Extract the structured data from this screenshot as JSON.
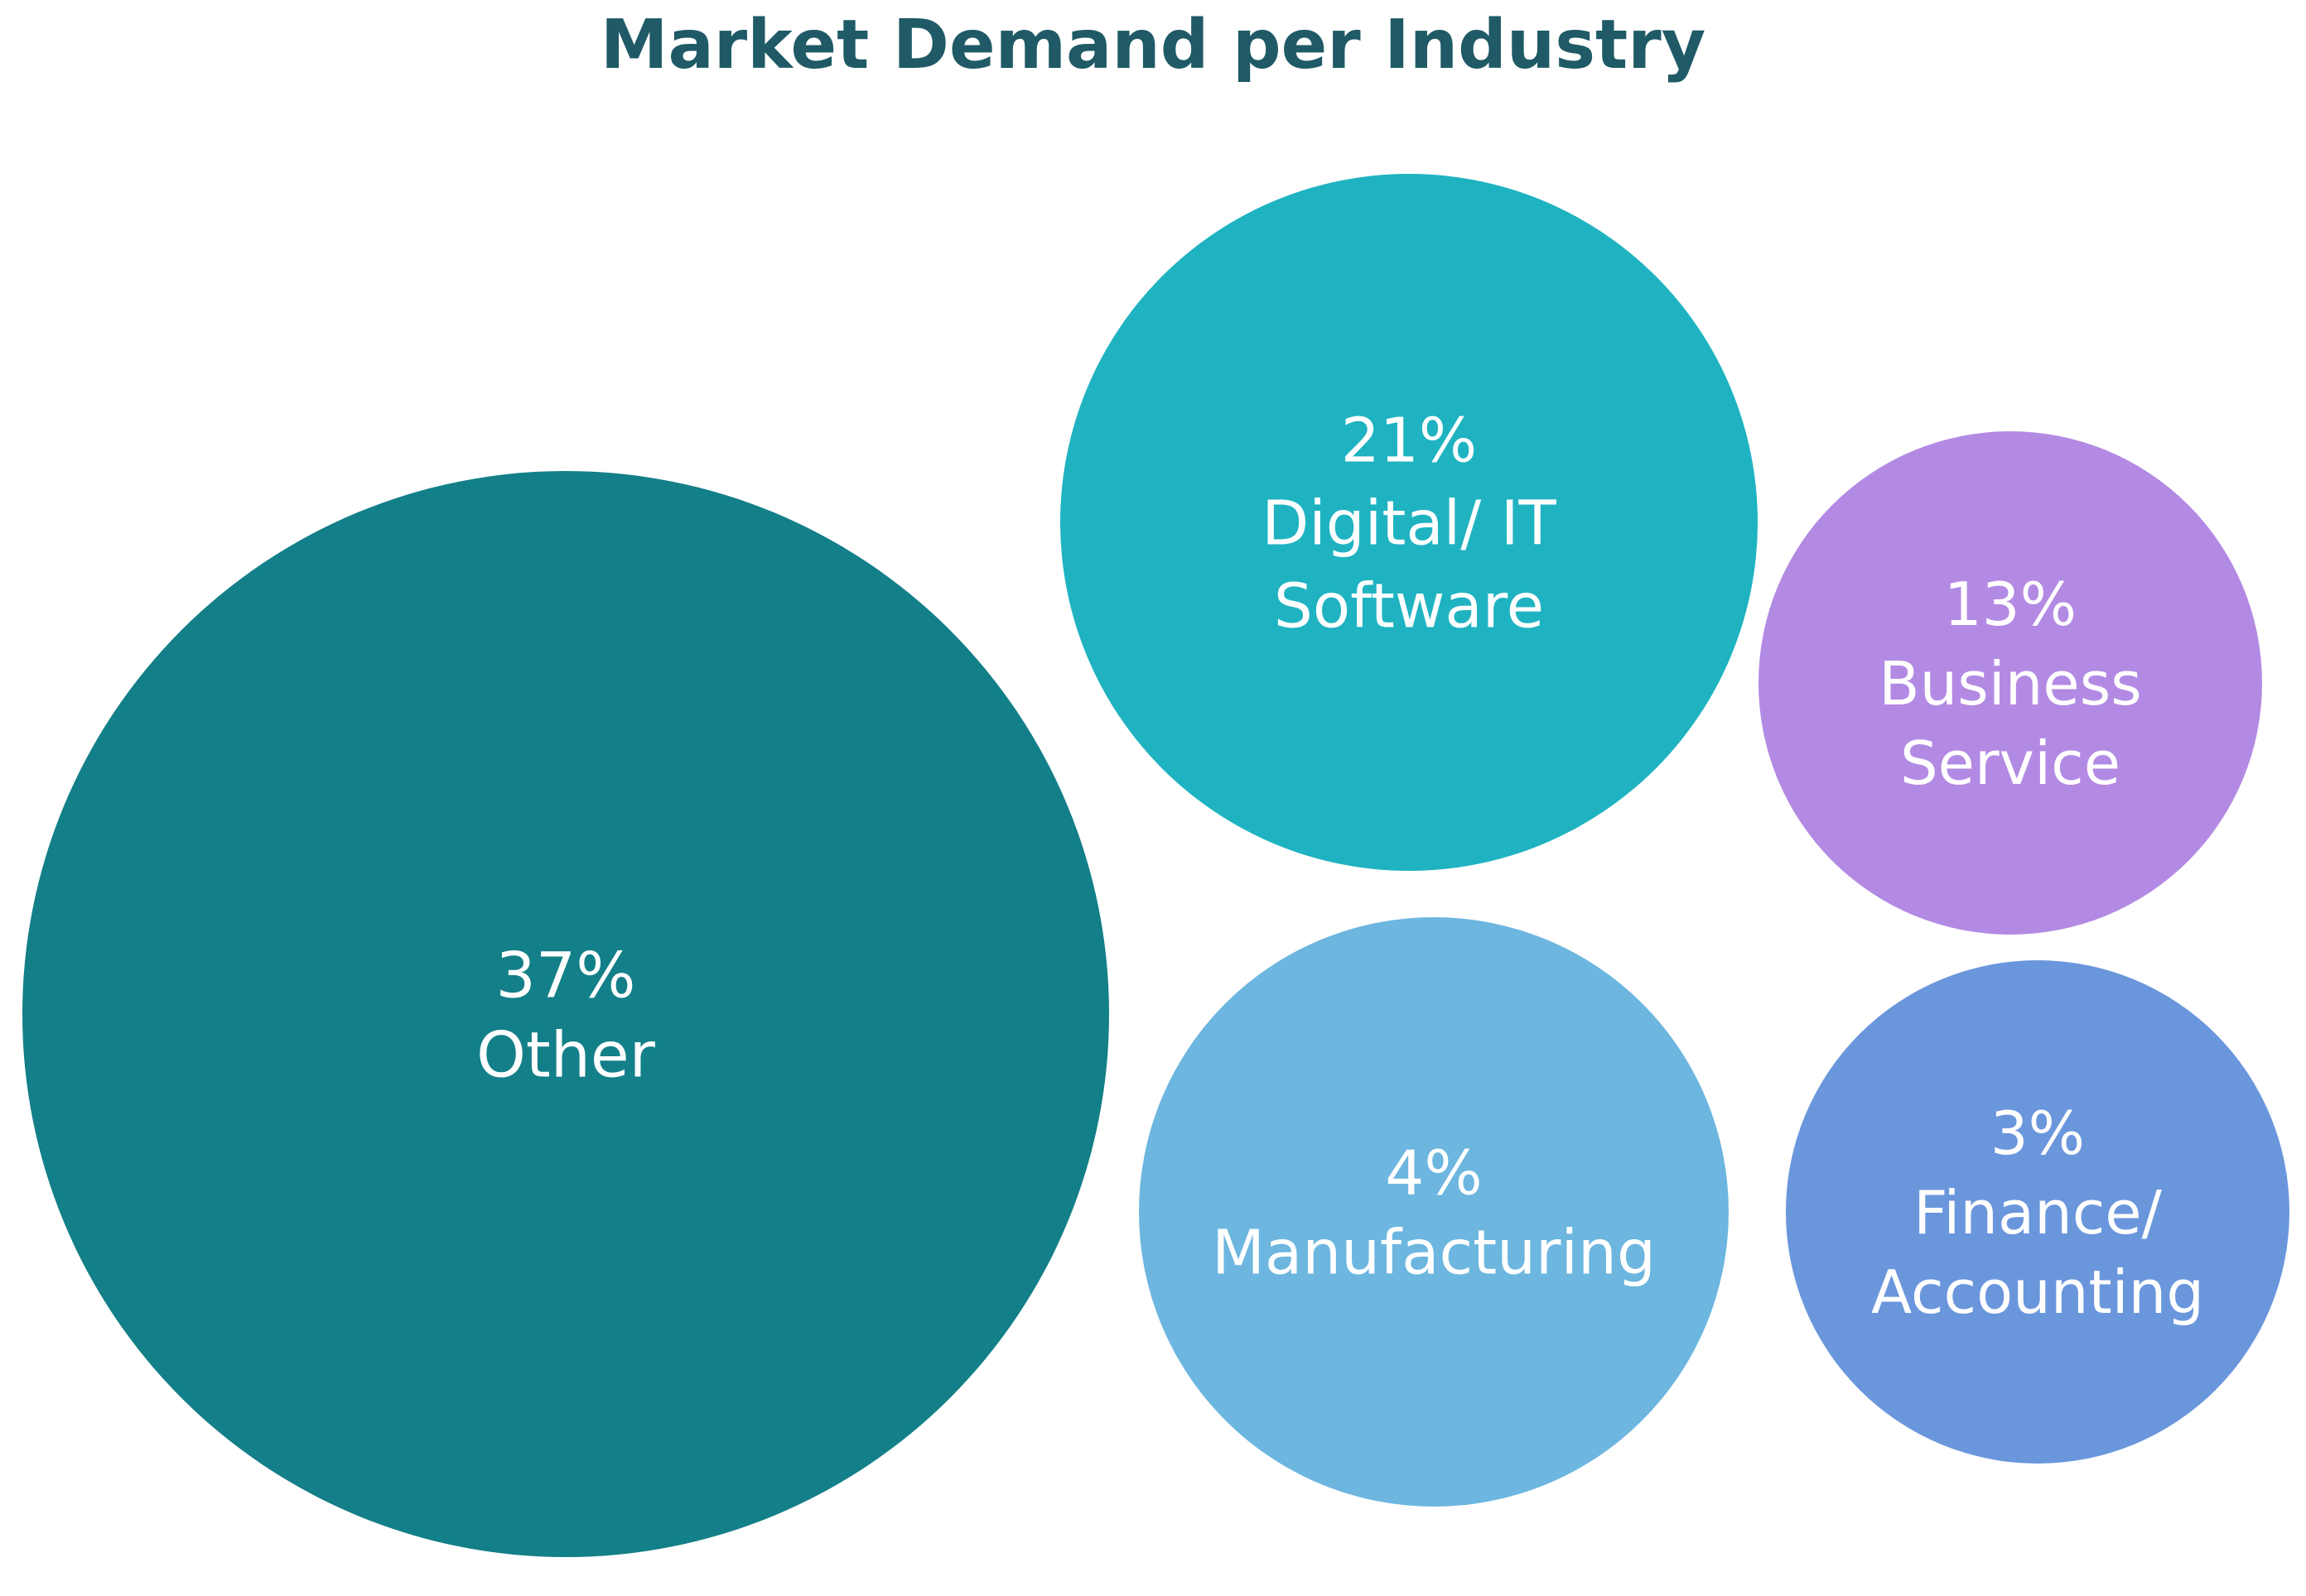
{
  "title": "Market Demand per Industry",
  "chart_data": {
    "type": "bubble",
    "title": "Market Demand per Industry",
    "unit": "%",
    "categories": [
      "Other",
      "Digital/ IT Software",
      "Business Service",
      "Manufacturing",
      "Finance/ Accounting"
    ],
    "values": [
      37,
      21,
      13,
      4,
      3
    ],
    "bubbles": [
      {
        "value_label": "37%",
        "label_lines": [
          "Other"
        ],
        "value": 37,
        "color": "#137f88"
      },
      {
        "value_label": "21%",
        "label_lines": [
          "Digital/ IT",
          "Software"
        ],
        "value": 21,
        "color": "#1fb3c1"
      },
      {
        "value_label": "13%",
        "label_lines": [
          "Business",
          "Service"
        ],
        "value": 13,
        "color": "#b38ae3"
      },
      {
        "value_label": "4%",
        "label_lines": [
          "Manufacturing"
        ],
        "value": 4,
        "color": "#6cb6df"
      },
      {
        "value_label": "3%",
        "label_lines": [
          "Finance/",
          "Accounting"
        ],
        "value": 3,
        "color": "#6a96dc"
      }
    ]
  }
}
